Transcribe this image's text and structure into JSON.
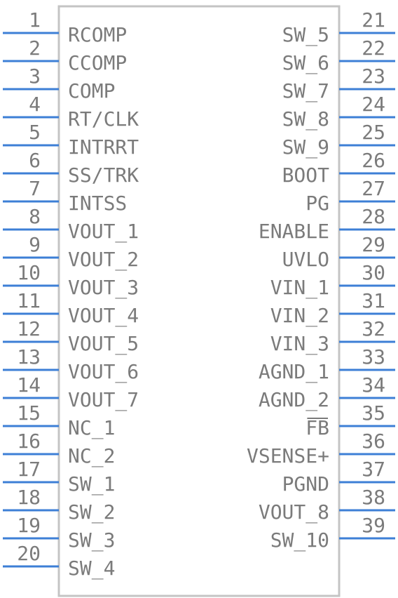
{
  "component": {
    "left_pins": [
      {
        "num": "1",
        "name": "RCOMP"
      },
      {
        "num": "2",
        "name": "CCOMP"
      },
      {
        "num": "3",
        "name": "COMP"
      },
      {
        "num": "4",
        "name": "RT/CLK"
      },
      {
        "num": "5",
        "name": "INTRRT"
      },
      {
        "num": "6",
        "name": "SS/TRK"
      },
      {
        "num": "7",
        "name": "INTSS"
      },
      {
        "num": "8",
        "name": "VOUT_1"
      },
      {
        "num": "9",
        "name": "VOUT_2"
      },
      {
        "num": "10",
        "name": "VOUT_3"
      },
      {
        "num": "11",
        "name": "VOUT_4"
      },
      {
        "num": "12",
        "name": "VOUT_5"
      },
      {
        "num": "13",
        "name": "VOUT_6"
      },
      {
        "num": "14",
        "name": "VOUT_7"
      },
      {
        "num": "15",
        "name": "NC_1"
      },
      {
        "num": "16",
        "name": "NC_2"
      },
      {
        "num": "17",
        "name": "SW_1"
      },
      {
        "num": "18",
        "name": "SW_2"
      },
      {
        "num": "19",
        "name": "SW_3"
      },
      {
        "num": "20",
        "name": "SW_4"
      }
    ],
    "right_pins": [
      {
        "num": "21",
        "name": "SW_5"
      },
      {
        "num": "22",
        "name": "SW_6"
      },
      {
        "num": "23",
        "name": "SW_7"
      },
      {
        "num": "24",
        "name": "SW_8"
      },
      {
        "num": "25",
        "name": "SW_9"
      },
      {
        "num": "26",
        "name": "BOOT"
      },
      {
        "num": "27",
        "name": "PG"
      },
      {
        "num": "28",
        "name": "ENABLE"
      },
      {
        "num": "29",
        "name": "UVLO"
      },
      {
        "num": "30",
        "name": "VIN_1"
      },
      {
        "num": "31",
        "name": "VIN_2"
      },
      {
        "num": "32",
        "name": "VIN_3"
      },
      {
        "num": "33",
        "name": "AGND_1"
      },
      {
        "num": "34",
        "name": "AGND_2"
      },
      {
        "num": "35",
        "name": "FB",
        "overbar": true
      },
      {
        "num": "36",
        "name": "VSENSE+"
      },
      {
        "num": "37",
        "name": "PGND"
      },
      {
        "num": "38",
        "name": "VOUT_8"
      },
      {
        "num": "39",
        "name": "SW_10"
      }
    ]
  },
  "colors": {
    "pin": "#3d7fd6",
    "outline": "#c4c4c4",
    "text": "#7b7b7b"
  }
}
